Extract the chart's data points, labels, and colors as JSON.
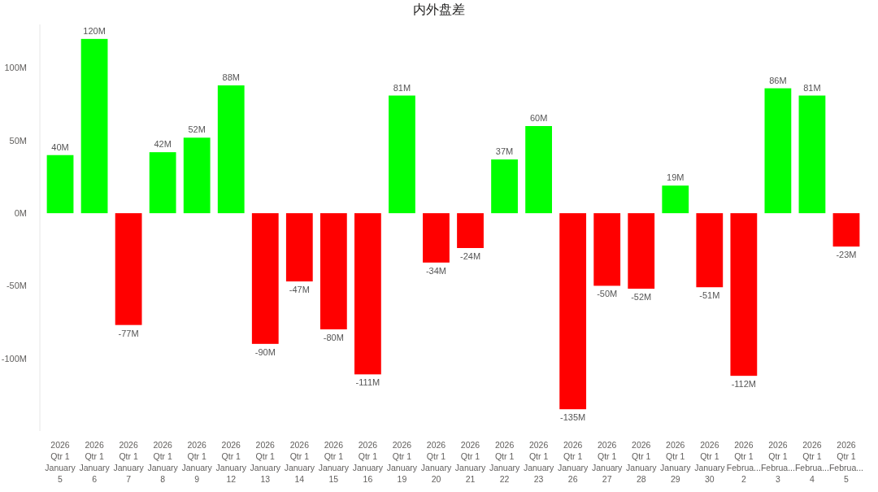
{
  "chart_data": {
    "type": "bar",
    "title": "内外盘差",
    "categories": [
      "2026\nQtr 1\nJanuary\n5",
      "2026\nQtr 1\nJanuary\n6",
      "2026\nQtr 1\nJanuary\n7",
      "2026\nQtr 1\nJanuary\n8",
      "2026\nQtr 1\nJanuary\n9",
      "2026\nQtr 1\nJanuary\n12",
      "2026\nQtr 1\nJanuary\n13",
      "2026\nQtr 1\nJanuary\n14",
      "2026\nQtr 1\nJanuary\n15",
      "2026\nQtr 1\nJanuary\n16",
      "2026\nQtr 1\nJanuary\n19",
      "2026\nQtr 1\nJanuary\n20",
      "2026\nQtr 1\nJanuary\n21",
      "2026\nQtr 1\nJanuary\n22",
      "2026\nQtr 1\nJanuary\n23",
      "2026\nQtr 1\nJanuary\n26",
      "2026\nQtr 1\nJanuary\n27",
      "2026\nQtr 1\nJanuary\n28",
      "2026\nQtr 1\nJanuary\n29",
      "2026\nQtr 1\nJanuary\n30",
      "2026\nQtr 1\nFebrua...\n2",
      "2026\nQtr 1\nFebrua...\n3",
      "2026\nQtr 1\nFebrua...\n4",
      "2026\nQtr 1\nFebrua...\n5"
    ],
    "values": [
      40,
      120,
      -77,
      42,
      52,
      88,
      -90,
      -47,
      -80,
      -111,
      81,
      -34,
      -24,
      37,
      60,
      -135,
      -50,
      -52,
      19,
      -51,
      -112,
      86,
      81,
      -23
    ],
    "value_labels": [
      "40M",
      "120M",
      "-77M",
      "42M",
      "52M",
      "88M",
      "-90M",
      "-47M",
      "-80M",
      "-111M",
      "81M",
      "-34M",
      "-24M",
      "37M",
      "60M",
      "-135M",
      "-50M",
      "-52M",
      "19M",
      "-51M",
      "-112M",
      "86M",
      "81M",
      "-23M"
    ],
    "colors": [
      "#00ff00",
      "#00ff00",
      "#ff0000",
      "#00ff00",
      "#00ff00",
      "#00ff00",
      "#ff0000",
      "#ff0000",
      "#ff0000",
      "#ff0000",
      "#00ff00",
      "#ff0000",
      "#ff0000",
      "#00ff00",
      "#00ff00",
      "#ff0000",
      "#ff0000",
      "#ff0000",
      "#00ff00",
      "#ff0000",
      "#ff0000",
      "#00ff00",
      "#00ff00",
      "#ff0000"
    ],
    "ylim": [
      -150,
      130
    ],
    "yticks": [
      {
        "value": -100,
        "label": "-100M"
      },
      {
        "value": -50,
        "label": "-50M"
      },
      {
        "value": 0,
        "label": "0M"
      },
      {
        "value": 50,
        "label": "50M"
      },
      {
        "value": 100,
        "label": "100M"
      }
    ]
  }
}
